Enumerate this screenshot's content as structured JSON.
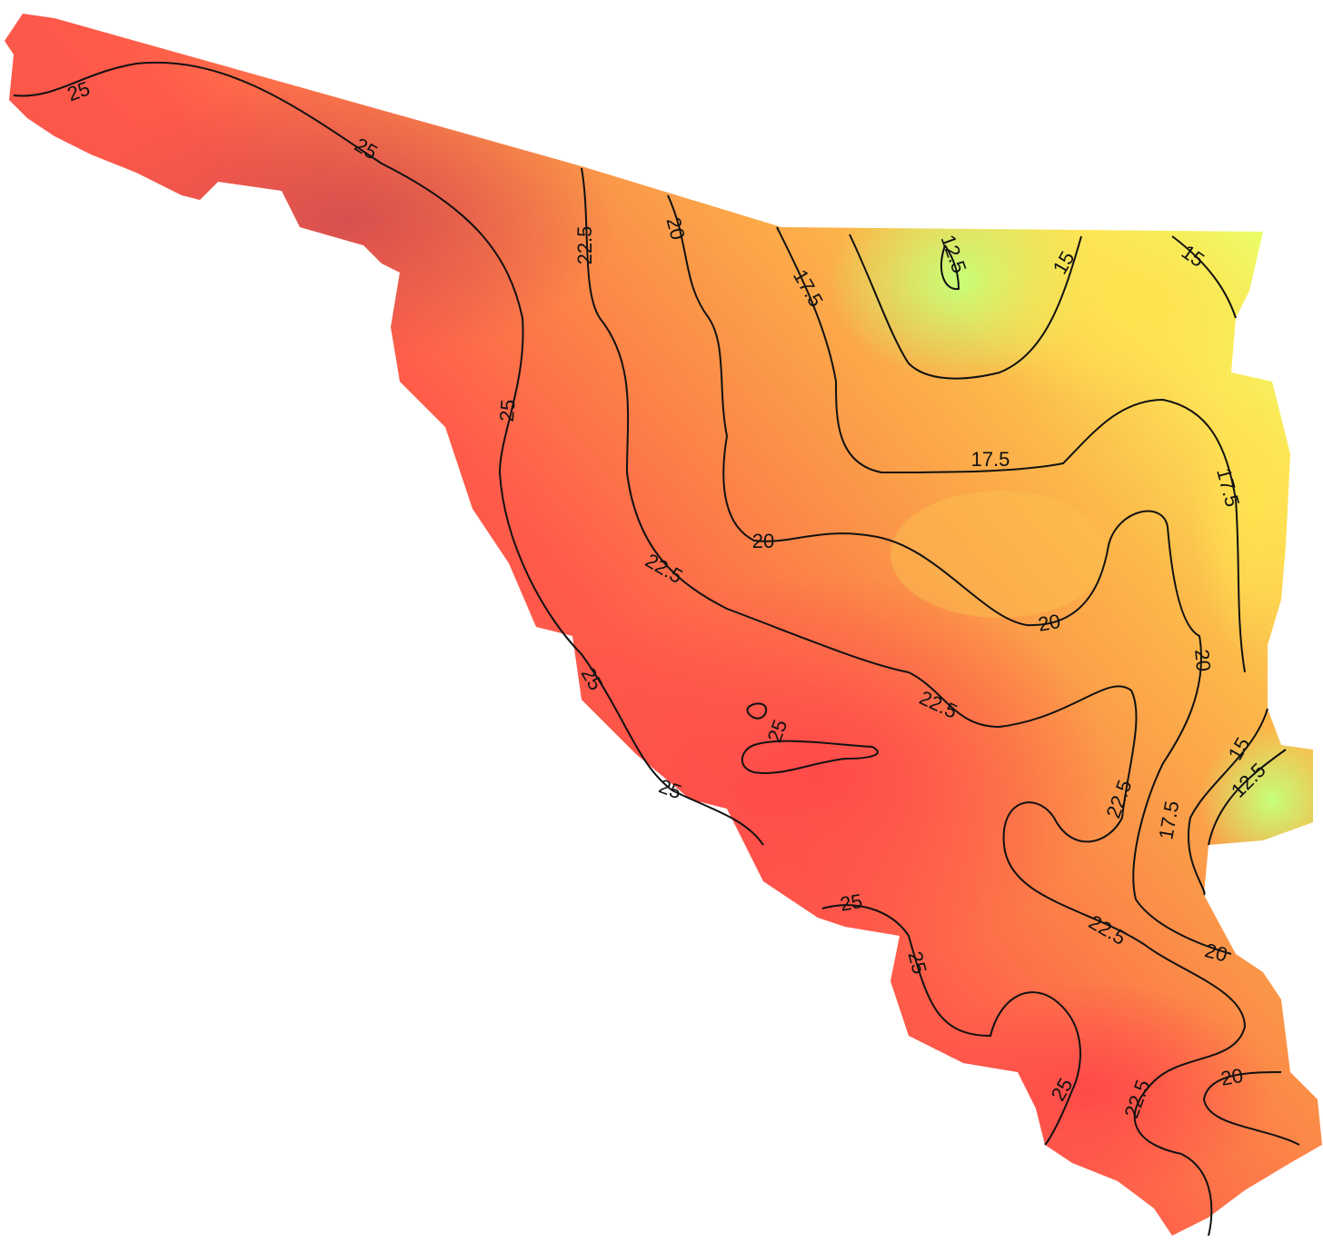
{
  "map": {
    "contour_labels": [
      25,
      25,
      25,
      22.5,
      20,
      17.5,
      12.5,
      15,
      15,
      17.5,
      17.5,
      20,
      22.5,
      20,
      20,
      22.5,
      25,
      25,
      15,
      12.5,
      22.5,
      17.5,
      25,
      25,
      22.5,
      20,
      25,
      25,
      20,
      22.5
    ]
  }
}
